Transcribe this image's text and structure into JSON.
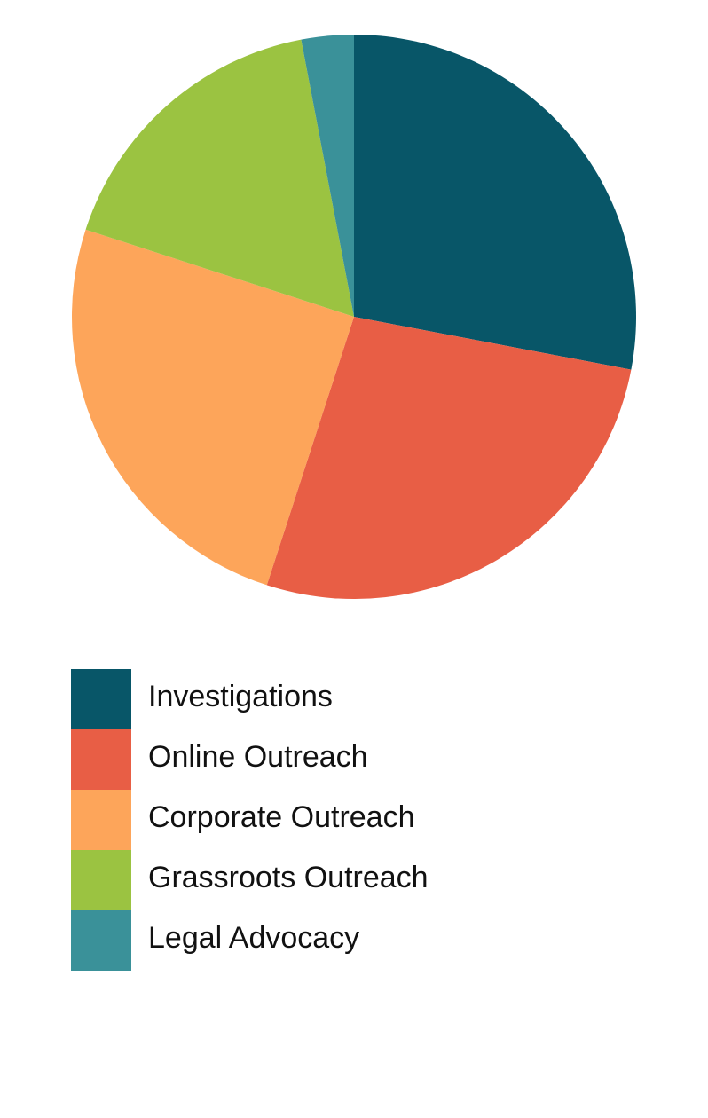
{
  "chart_data": {
    "type": "pie",
    "categories": [
      "Investigations",
      "Online Outreach",
      "Corporate Outreach",
      "Grassroots Outreach",
      "Legal Advocacy"
    ],
    "values": [
      28,
      27,
      25,
      17,
      3
    ],
    "colors": [
      "#085668",
      "#e85e45",
      "#fda55a",
      "#9bc341",
      "#3a9199"
    ],
    "start_angle": 90,
    "direction": "clockwise"
  }
}
